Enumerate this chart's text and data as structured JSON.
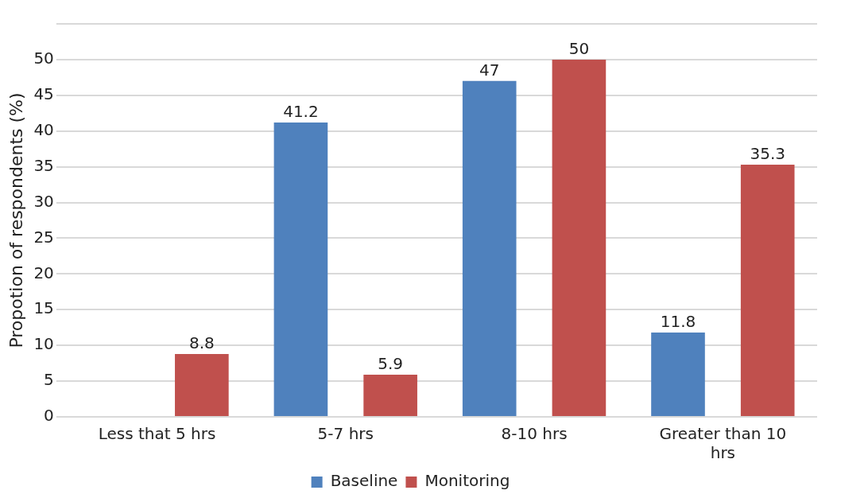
{
  "chart_data": {
    "type": "bar",
    "ylabel": "Propotion of respondents (%)",
    "categories": [
      "Less that 5 hrs",
      "5-7 hrs",
      "8-10 hrs",
      "Greater than 10 hrs"
    ],
    "series": [
      {
        "name": "Baseline",
        "color": "#4f81bd",
        "values": [
          null,
          41.2,
          47,
          11.8
        ]
      },
      {
        "name": "Monitoring",
        "color": "#c0504d",
        "values": [
          8.8,
          5.9,
          50,
          35.3
        ]
      }
    ],
    "ylim": [
      0,
      55
    ],
    "yticks": [
      0,
      5,
      10,
      15,
      20,
      25,
      30,
      35,
      40,
      45,
      50,
      {
        "value": 55,
        "label": null
      }
    ],
    "grid": "y",
    "legend": "bottom",
    "data_labels": true
  }
}
